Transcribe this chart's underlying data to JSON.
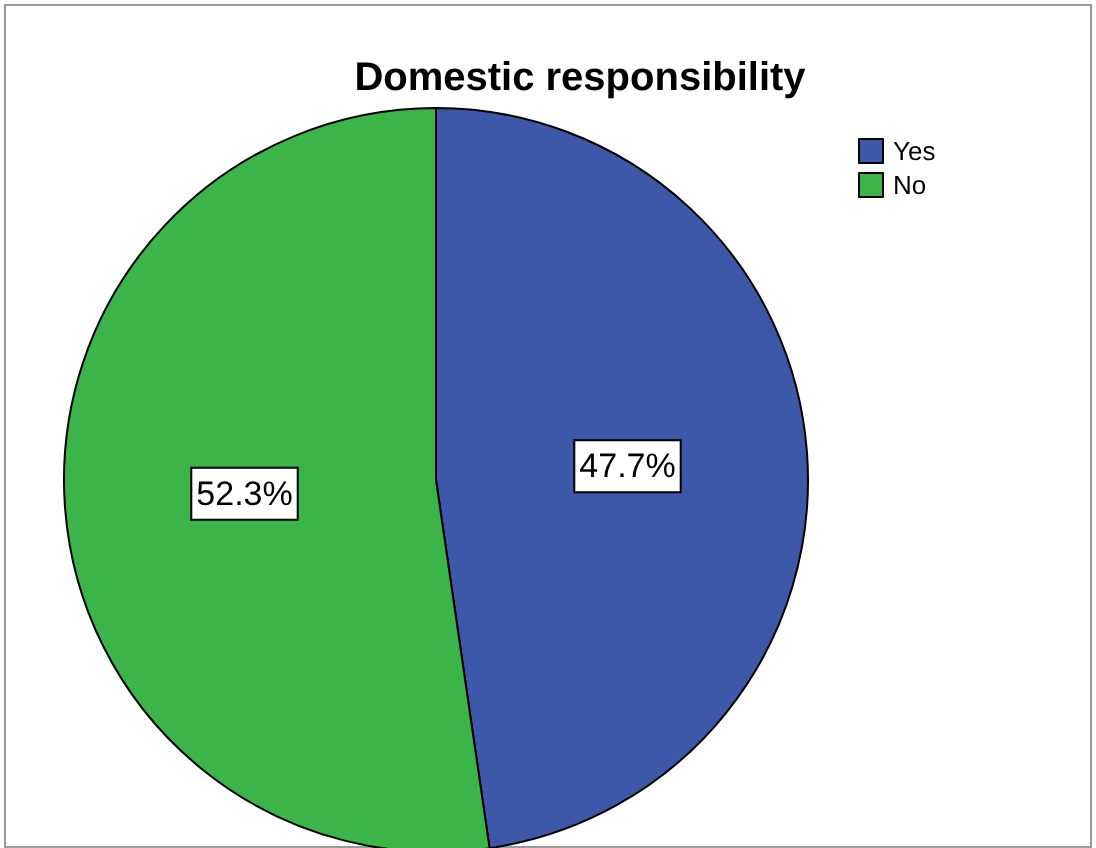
{
  "chart_data": {
    "type": "pie",
    "title": "Domestic responsibility",
    "categories": [
      "Yes",
      "No"
    ],
    "values": [
      47.7,
      52.3
    ],
    "colors": [
      "#3d58a8",
      "#3bb54a"
    ],
    "value_labels": [
      "47.7%",
      "52.3%"
    ],
    "legend": "top right"
  }
}
